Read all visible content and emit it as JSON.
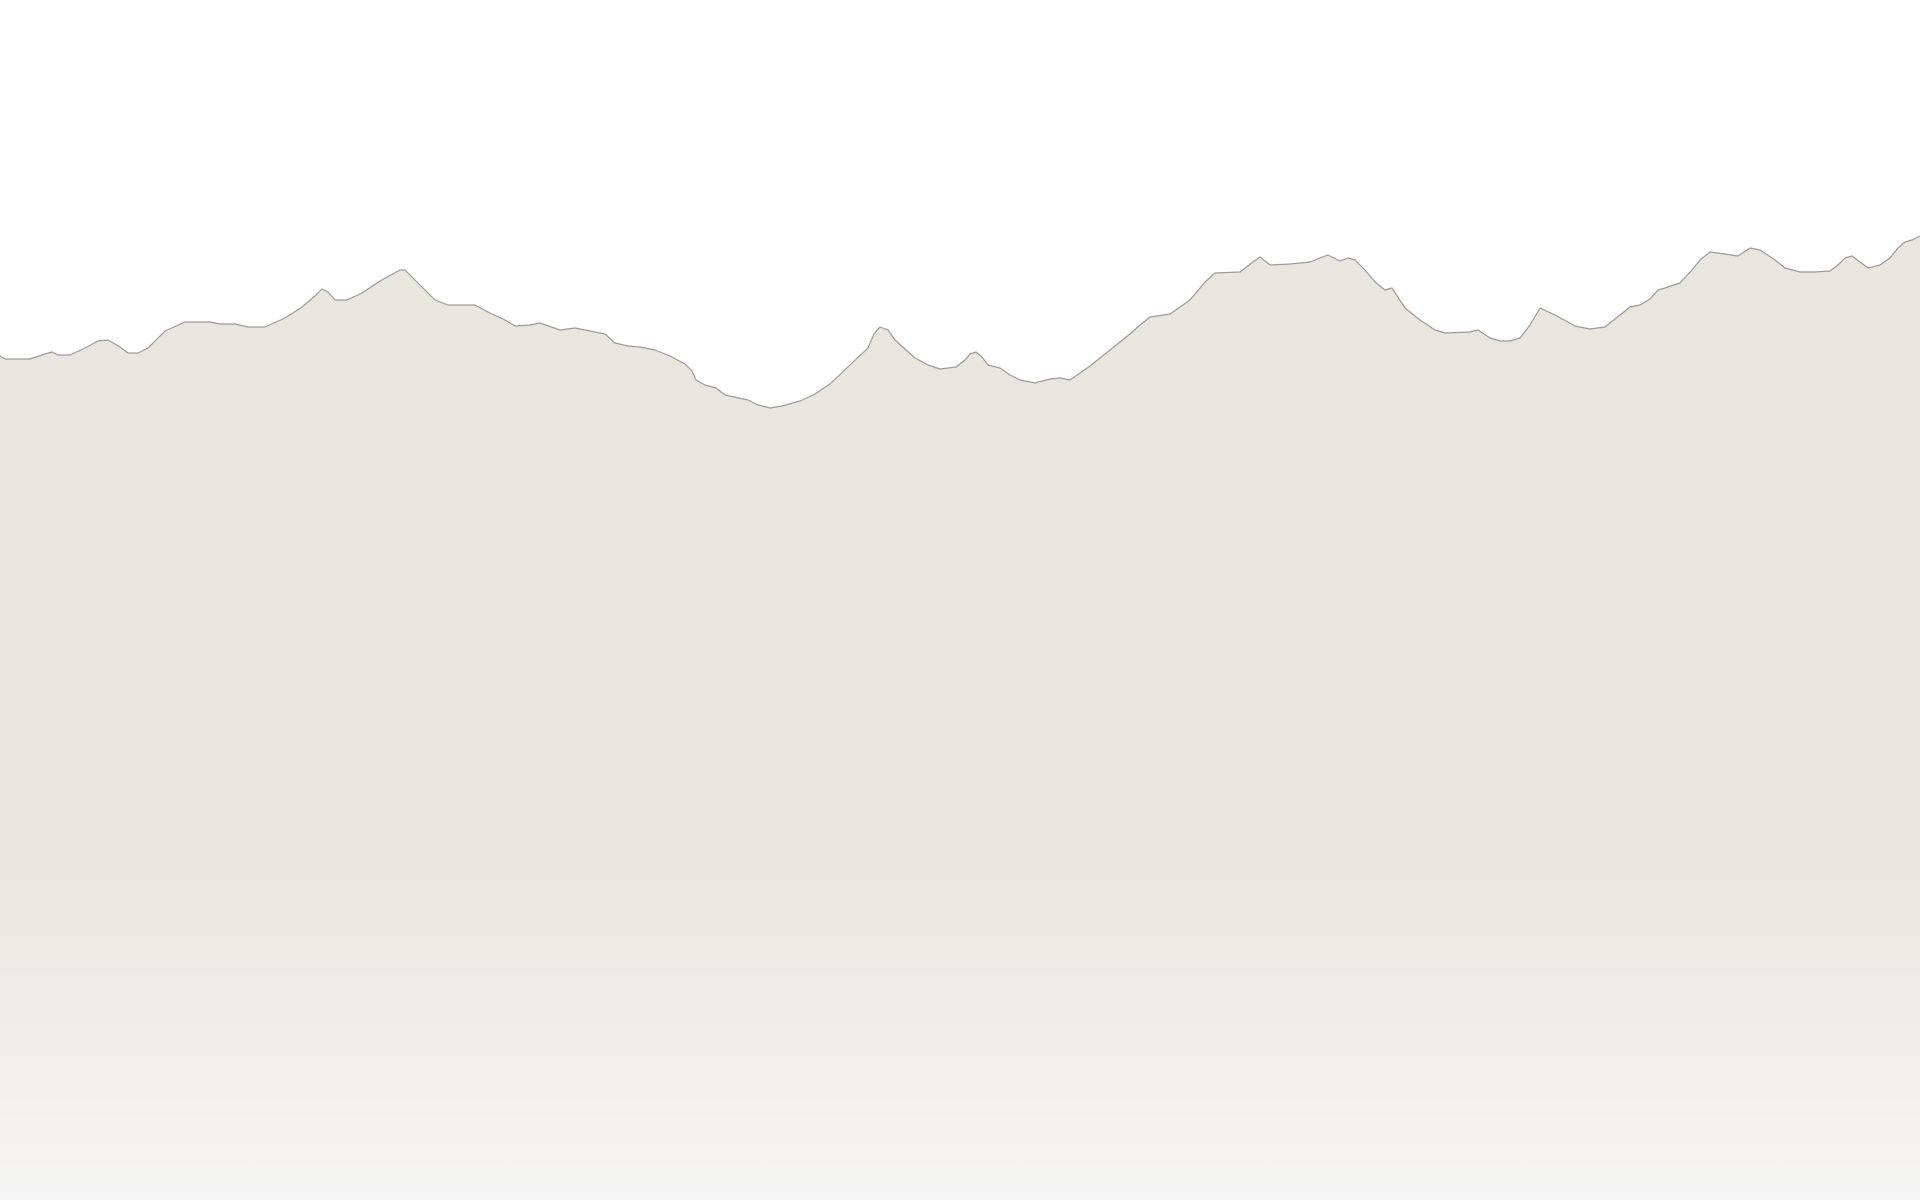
{
  "scene": {
    "sky_color": "#ffffff",
    "terrain_color": "#e9e5df",
    "ridge_line_color": "#9e9993",
    "fade_color": "#f5f5f5"
  }
}
